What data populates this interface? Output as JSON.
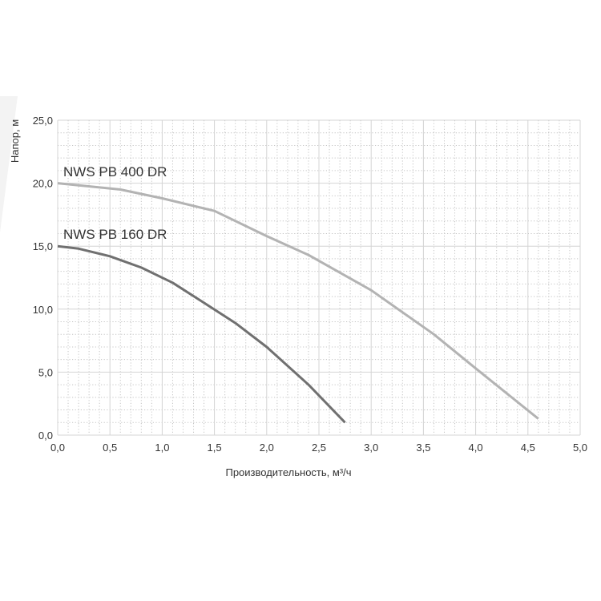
{
  "chart_data": {
    "type": "line",
    "title": "",
    "xlabel": "Производительность, м³/ч",
    "ylabel": "Напор, м",
    "xlim": [
      0,
      5
    ],
    "ylim": [
      0,
      25
    ],
    "x_ticks": [
      "0,0",
      "0,5",
      "1,0",
      "1,5",
      "2,0",
      "2,5",
      "3,0",
      "3,5",
      "4,0",
      "4,5",
      "5,0"
    ],
    "y_ticks": [
      "0,0",
      "5,0",
      "10,0",
      "15,0",
      "20,0",
      "25,0"
    ],
    "grid": true,
    "series": [
      {
        "name": "NWS PB 400 DR",
        "color": "#b3b3b3",
        "x": [
          0,
          0.6,
          1.0,
          1.5,
          2.0,
          2.4,
          3.0,
          3.6,
          4.0,
          4.6
        ],
        "y": [
          20.0,
          19.5,
          18.8,
          17.8,
          15.8,
          14.3,
          11.5,
          8.0,
          5.3,
          1.3
        ]
      },
      {
        "name": "NWS PB 160 DR",
        "color": "#707070",
        "x": [
          0,
          0.2,
          0.5,
          0.8,
          1.1,
          1.4,
          1.7,
          2.0,
          2.4,
          2.75
        ],
        "y": [
          15.0,
          14.8,
          14.2,
          13.3,
          12.1,
          10.5,
          8.9,
          7.0,
          4.0,
          1.0
        ]
      }
    ]
  }
}
